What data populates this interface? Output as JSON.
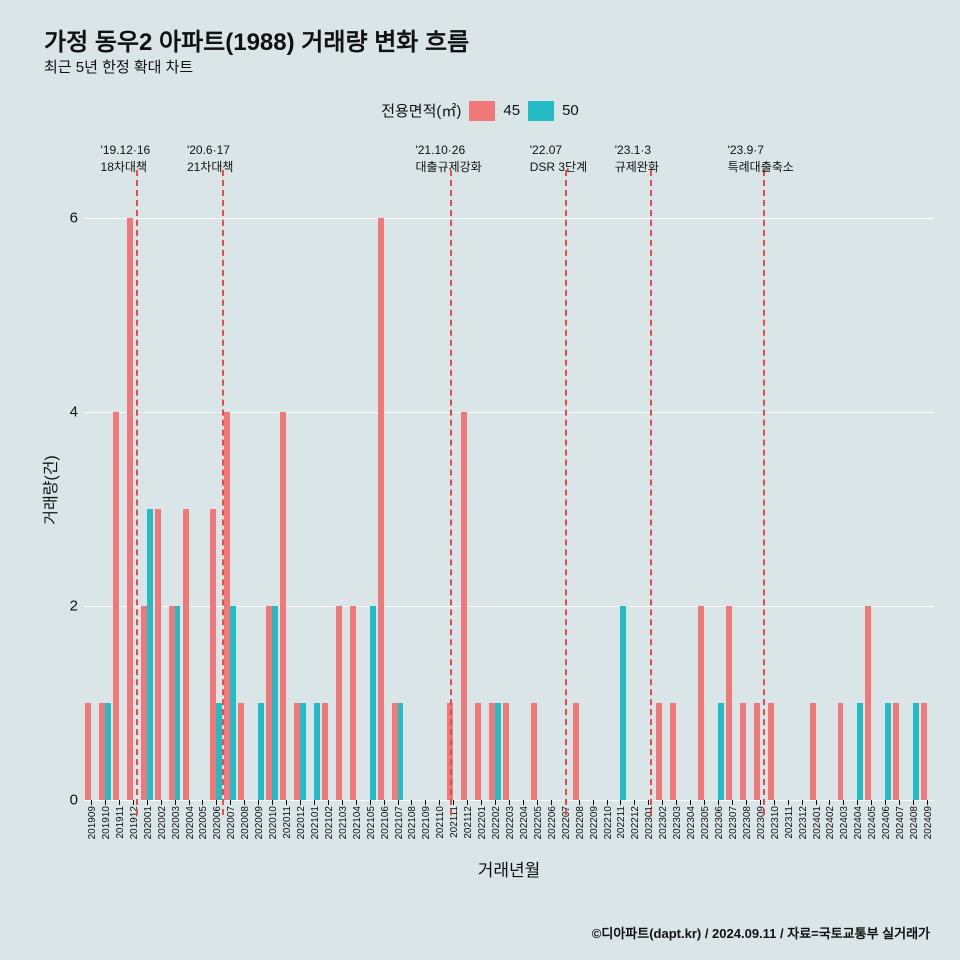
{
  "title": "가정 동우2 아파트(1988) 거래량 변화 흐름",
  "title_fontsize": 24,
  "subtitle": "최근 5년 한정 확대 차트",
  "subtitle_fontsize": 15,
  "legend": {
    "label": "전용면적(㎡)",
    "items": [
      {
        "name": "45",
        "color": "#f07878"
      },
      {
        "name": "50",
        "color": "#23bcc4"
      }
    ],
    "fontsize": 15
  },
  "background_color": "#dae5e7",
  "grid_color": "#ffffff",
  "ylabel": "거래량(건)",
  "xlabel": "거래년월",
  "ylim": [
    0,
    6.5
  ],
  "yticks": [
    0,
    2,
    4,
    6
  ],
  "categories": [
    "201909",
    "201910",
    "201911",
    "201912",
    "202001",
    "202002",
    "202003",
    "202004",
    "202005",
    "202006",
    "202007",
    "202008",
    "202009",
    "202010",
    "202011",
    "202012",
    "202101",
    "202102",
    "202103",
    "202104",
    "202105",
    "202106",
    "202107",
    "202108",
    "202109",
    "202110",
    "202111",
    "202112",
    "202201",
    "202202",
    "202203",
    "202204",
    "202205",
    "202206",
    "202207",
    "202208",
    "202209",
    "202210",
    "202211",
    "202212",
    "202301",
    "202302",
    "202303",
    "202304",
    "202305",
    "202306",
    "202307",
    "202308",
    "202309",
    "202310",
    "202311",
    "202312",
    "202401",
    "202402",
    "202403",
    "202404",
    "202405",
    "202406",
    "202407",
    "202408",
    "202409"
  ],
  "series": {
    "s45": {
      "color": "#f07878",
      "values": [
        1,
        1,
        4,
        6,
        2,
        3,
        2,
        3,
        0,
        3,
        4,
        1,
        0,
        2,
        4,
        1,
        0,
        1,
        2,
        2,
        0,
        6,
        1,
        0,
        0,
        0,
        1,
        4,
        1,
        1,
        1,
        0,
        1,
        0,
        0,
        1,
        0,
        0,
        0,
        0,
        0,
        1,
        1,
        0,
        2,
        0,
        2,
        1,
        1,
        1,
        0,
        0,
        1,
        0,
        1,
        0,
        2,
        0,
        1,
        0,
        1
      ]
    },
    "s50": {
      "color": "#23bcc4",
      "values": [
        0,
        1,
        0,
        0,
        3,
        0,
        2,
        0,
        0,
        1,
        2,
        0,
        1,
        2,
        0,
        1,
        1,
        0,
        0,
        0,
        2,
        0,
        1,
        0,
        0,
        0,
        0,
        0,
        0,
        1,
        0,
        0,
        0,
        0,
        0,
        0,
        0,
        0,
        2,
        0,
        0,
        0,
        0,
        0,
        0,
        1,
        0,
        0,
        0,
        0,
        0,
        0,
        0,
        0,
        0,
        1,
        0,
        1,
        0,
        1,
        0
      ]
    }
  },
  "bar_group_width": 0.85,
  "events": [
    {
      "x_index": 3.2,
      "line1": "'19.12·16",
      "line2": "18차대책"
    },
    {
      "x_index": 9.4,
      "line1": "'20.6·17",
      "line2": "21차대책"
    },
    {
      "x_index": 25.8,
      "line1": "'21.10·26",
      "line2": "대출규제강화"
    },
    {
      "x_index": 34.0,
      "line1": "'22.07",
      "line2": "DSR 3단계"
    },
    {
      "x_index": 40.1,
      "line1": "'23.1·3",
      "line2": "규제완화"
    },
    {
      "x_index": 48.2,
      "line1": "'23.9·7",
      "line2": "특례대출축소"
    }
  ],
  "footer": "©디아파트(dapt.kr) / 2024.09.11 / 자료=국토교통부 실거래가"
}
